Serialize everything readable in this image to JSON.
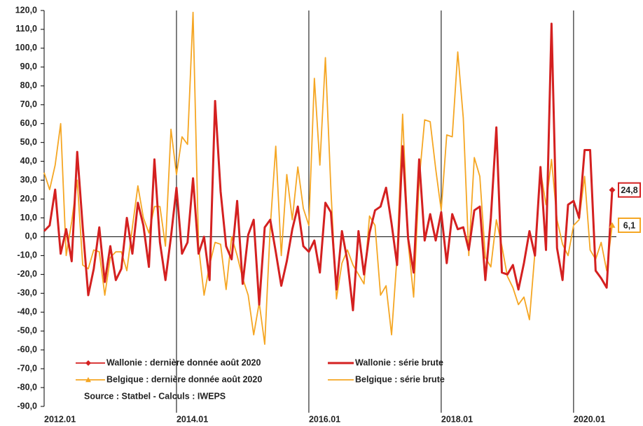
{
  "chart_data": {
    "type": "line",
    "categories": [
      "2012.01",
      null,
      null,
      null,
      null,
      null,
      null,
      null,
      null,
      null,
      null,
      null,
      null,
      null,
      null,
      null,
      null,
      null,
      null,
      null,
      null,
      null,
      null,
      null,
      "2014.01",
      null,
      null,
      null,
      null,
      null,
      null,
      null,
      null,
      null,
      null,
      null,
      null,
      null,
      null,
      null,
      null,
      null,
      null,
      null,
      null,
      null,
      null,
      null,
      "2016.01",
      null,
      null,
      null,
      null,
      null,
      null,
      null,
      null,
      null,
      null,
      null,
      null,
      null,
      null,
      null,
      null,
      null,
      null,
      null,
      null,
      null,
      null,
      null,
      "2018.01",
      null,
      null,
      null,
      null,
      null,
      null,
      null,
      null,
      null,
      null,
      null,
      null,
      null,
      null,
      null,
      null,
      null,
      null,
      null,
      null,
      null,
      null,
      null,
      "2020.01",
      null,
      null,
      null,
      null,
      null,
      null,
      null
    ],
    "series": [
      {
        "name": "Wallonie : dernière donnée août 2020",
        "color": "#d42020",
        "marker": "diamond",
        "values": [
          null,
          null,
          null,
          null,
          null,
          null,
          null,
          null,
          null,
          null,
          null,
          null,
          null,
          null,
          null,
          null,
          null,
          null,
          null,
          null,
          null,
          null,
          null,
          null,
          null,
          null,
          null,
          null,
          null,
          null,
          null,
          null,
          null,
          null,
          null,
          null,
          null,
          null,
          null,
          null,
          null,
          null,
          null,
          null,
          null,
          null,
          null,
          null,
          null,
          null,
          null,
          null,
          null,
          null,
          null,
          null,
          null,
          null,
          null,
          null,
          null,
          null,
          null,
          null,
          null,
          null,
          null,
          null,
          null,
          null,
          null,
          null,
          null,
          null,
          null,
          null,
          null,
          null,
          null,
          null,
          null,
          null,
          null,
          null,
          null,
          null,
          null,
          null,
          null,
          null,
          null,
          null,
          null,
          null,
          null,
          null,
          null,
          null,
          null,
          null,
          null,
          null,
          null,
          24.8
        ],
        "value_labels": [
          null,
          null,
          null,
          null,
          null,
          null,
          null,
          null,
          null,
          null,
          null,
          null,
          null,
          null,
          null,
          null,
          null,
          null,
          null,
          null,
          null,
          null,
          null,
          null,
          null,
          null,
          null,
          null,
          null,
          null,
          null,
          null,
          null,
          null,
          null,
          null,
          null,
          null,
          null,
          null,
          null,
          null,
          null,
          null,
          null,
          null,
          null,
          null,
          null,
          null,
          null,
          null,
          null,
          null,
          null,
          null,
          null,
          null,
          null,
          null,
          null,
          null,
          null,
          null,
          null,
          null,
          null,
          null,
          null,
          null,
          null,
          null,
          null,
          null,
          null,
          null,
          null,
          null,
          null,
          null,
          null,
          null,
          null,
          null,
          null,
          null,
          null,
          null,
          null,
          null,
          null,
          null,
          null,
          null,
          null,
          null,
          null,
          null,
          null,
          null,
          null,
          null,
          null,
          "24,8"
        ]
      },
      {
        "name": "Wallonie : série brute",
        "color": "#d42020",
        "values": [
          3,
          6,
          25,
          -9,
          4,
          -13,
          45,
          5,
          -31,
          -17,
          5,
          -24,
          -5,
          -23,
          -17,
          10,
          -9,
          18,
          6,
          -16,
          41,
          -3,
          -23,
          0,
          26,
          -9,
          -3,
          31,
          -9,
          0,
          -23,
          72,
          24,
          -5,
          -12,
          19,
          -25,
          1,
          9,
          -36,
          5,
          9,
          -8,
          -26,
          -13,
          4,
          16,
          -5,
          -8,
          -2,
          -19,
          18,
          13,
          -28,
          3,
          -13,
          -39,
          3,
          -20,
          2,
          14,
          16,
          26,
          7,
          -15,
          48,
          -1,
          -19,
          41,
          -2,
          12,
          -2,
          13,
          -14,
          12,
          4,
          5,
          -7,
          14,
          16,
          -23,
          10,
          58,
          -19,
          -20,
          -15,
          -28,
          -14,
          3,
          -10,
          37,
          -7,
          113,
          -6,
          -23,
          17,
          19,
          10,
          46,
          46,
          -18,
          -22,
          -27,
          24.8
        ]
      },
      {
        "name": "Belgique : dernière donnée août 2020",
        "color": "#f5a623",
        "marker": "triangle",
        "values": [
          null,
          null,
          null,
          null,
          null,
          null,
          null,
          null,
          null,
          null,
          null,
          null,
          null,
          null,
          null,
          null,
          null,
          null,
          null,
          null,
          null,
          null,
          null,
          null,
          null,
          null,
          null,
          null,
          null,
          null,
          null,
          null,
          null,
          null,
          null,
          null,
          null,
          null,
          null,
          null,
          null,
          null,
          null,
          null,
          null,
          null,
          null,
          null,
          null,
          null,
          null,
          null,
          null,
          null,
          null,
          null,
          null,
          null,
          null,
          null,
          null,
          null,
          null,
          null,
          null,
          null,
          null,
          null,
          null,
          null,
          null,
          null,
          null,
          null,
          null,
          null,
          null,
          null,
          null,
          null,
          null,
          null,
          null,
          null,
          null,
          null,
          null,
          null,
          null,
          null,
          null,
          null,
          null,
          null,
          null,
          null,
          null,
          null,
          null,
          null,
          null,
          null,
          null,
          6.1
        ],
        "value_labels": [
          null,
          null,
          null,
          null,
          null,
          null,
          null,
          null,
          null,
          null,
          null,
          null,
          null,
          null,
          null,
          null,
          null,
          null,
          null,
          null,
          null,
          null,
          null,
          null,
          null,
          null,
          null,
          null,
          null,
          null,
          null,
          null,
          null,
          null,
          null,
          null,
          null,
          null,
          null,
          null,
          null,
          null,
          null,
          null,
          null,
          null,
          null,
          null,
          null,
          null,
          null,
          null,
          null,
          null,
          null,
          null,
          null,
          null,
          null,
          null,
          null,
          null,
          null,
          null,
          null,
          null,
          null,
          null,
          null,
          null,
          null,
          null,
          null,
          null,
          null,
          null,
          null,
          null,
          null,
          null,
          null,
          null,
          null,
          null,
          null,
          null,
          null,
          null,
          null,
          null,
          null,
          null,
          null,
          null,
          null,
          null,
          null,
          null,
          null,
          null,
          null,
          null,
          null,
          "6,1"
        ]
      },
      {
        "name": "Belgique : série brute",
        "color": "#f5a623",
        "values": [
          34,
          25,
          38,
          60,
          -10,
          8,
          30,
          -15,
          -17,
          -7,
          -8,
          -31,
          -11,
          -8,
          -8,
          -18,
          5,
          27,
          10,
          2,
          16,
          16,
          -5,
          57,
          33,
          53,
          49,
          119,
          -5,
          -31,
          -15,
          -3,
          -4,
          -28,
          0,
          -10,
          -22,
          -31,
          -52,
          -35,
          -57,
          5,
          48,
          -10,
          33,
          9,
          37,
          15,
          6,
          84,
          38,
          95,
          25,
          -33,
          -14,
          -7,
          -15,
          -20,
          -25,
          11,
          6,
          -31,
          -26,
          -52,
          -10,
          65,
          -3,
          -32,
          30,
          62,
          61,
          36,
          14,
          54,
          53,
          98,
          63,
          -10,
          42,
          32,
          -11,
          -16,
          9,
          -5,
          -21,
          -27,
          -36,
          -32,
          -44,
          -8,
          35,
          17,
          41,
          9,
          -4,
          -10,
          6,
          9,
          32,
          -7,
          -12,
          -3,
          -18,
          6.1
        ]
      }
    ],
    "annotation": "Source : Statbel - Calculs : IWEPS",
    "ylim": [
      -90,
      120
    ],
    "yticks": [
      {
        "value": 120,
        "label": "120,0"
      },
      {
        "value": 110,
        "label": "110,0"
      },
      {
        "value": 100,
        "label": "100,0"
      },
      {
        "value": 90,
        "label": "90,0"
      },
      {
        "value": 80,
        "label": "80,0"
      },
      {
        "value": 70,
        "label": "70,0"
      },
      {
        "value": 60,
        "label": "60,0"
      },
      {
        "value": 50,
        "label": "50,0"
      },
      {
        "value": 40,
        "label": "40,0"
      },
      {
        "value": 30,
        "label": "30,0"
      },
      {
        "value": 20,
        "label": "20,0"
      },
      {
        "value": 10,
        "label": "10,0"
      },
      {
        "value": 0,
        "label": "0,0"
      },
      {
        "value": -10,
        "label": "-10,0"
      },
      {
        "value": -20,
        "label": "-20,0"
      },
      {
        "value": -30,
        "label": "-30,0"
      },
      {
        "value": -40,
        "label": "-40,0"
      },
      {
        "value": -50,
        "label": "-50,0"
      },
      {
        "value": -60,
        "label": "-60,0"
      },
      {
        "value": -70,
        "label": "-70,0"
      },
      {
        "value": -80,
        "label": "-80,0"
      },
      {
        "value": -90,
        "label": "-90,0"
      }
    ]
  }
}
